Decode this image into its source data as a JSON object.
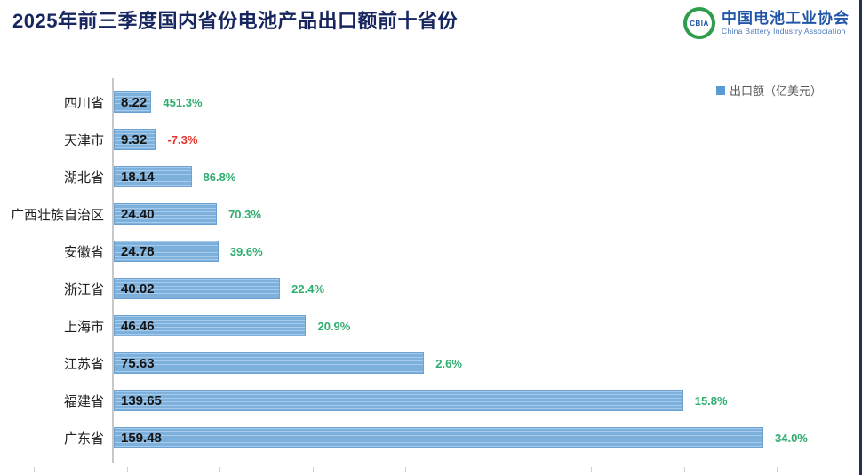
{
  "page": {
    "title": "2025年前三季度国内省份电池产品出口额前十省份"
  },
  "logo": {
    "icon_text": "CBIA",
    "name_zh": "中国电池工业协会",
    "name_en": "China Battery Industry Association"
  },
  "chart_data": {
    "type": "bar",
    "orientation": "horizontal",
    "title": "2025年前三季度国内省份电池产品出口额前十省份",
    "legend_label": "出口额（亿美元）",
    "legend_position": "top-right",
    "categories": [
      "四川省",
      "天津市",
      "湖北省",
      "广西壮族自治区",
      "安徽省",
      "浙江省",
      "上海市",
      "江苏省",
      "福建省",
      "广东省"
    ],
    "series": [
      {
        "name": "出口额（亿美元）",
        "values": [
          8.22,
          9.32,
          18.14,
          24.4,
          24.78,
          40.02,
          46.46,
          75.63,
          139.65,
          159.48
        ]
      }
    ],
    "value_labels": [
      "8.22",
      "9.32",
      "18.14",
      "24.40",
      "24.78",
      "40.02",
      "46.46",
      "75.63",
      "139.65",
      "159.48"
    ],
    "growth_labels": [
      "451.3%",
      "-7.3%",
      "86.8%",
      "70.3%",
      "39.6%",
      "22.4%",
      "20.9%",
      "2.6%",
      "15.8%",
      "34.0%"
    ],
    "growth_signs": [
      "positive",
      "negative",
      "positive",
      "positive",
      "positive",
      "positive",
      "positive",
      "positive",
      "positive",
      "positive"
    ],
    "xlim": [
      0,
      165
    ],
    "grid": false,
    "colors": {
      "bar": "#7db1dc",
      "bar_stripe": "#a6cbec",
      "bar_border": "#6ba2d2",
      "growth_positive": "#2ead6e",
      "growth_negative": "#e8352c",
      "legend_marker": "#5b9bd5",
      "title": "#17265e",
      "accent_strip": "#223052"
    }
  }
}
